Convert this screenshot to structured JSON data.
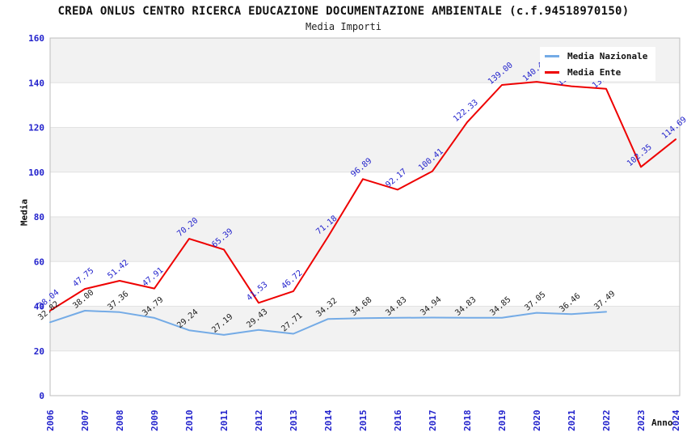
{
  "header": {
    "title": "CREDA ONLUS CENTRO RICERCA EDUCAZIONE DOCUMENTAZIONE AMBIENTALE (c.f.94518970150)",
    "subtitle": "Media Importi"
  },
  "axes": {
    "y_title": "Media",
    "x_title": "Anno",
    "y_ticks": [
      "0",
      "20",
      "40",
      "60",
      "80",
      "100",
      "120",
      "140",
      "160"
    ],
    "x_ticks": [
      "2006",
      "2007",
      "2008",
      "2009",
      "2010",
      "2011",
      "2012",
      "2013",
      "2014",
      "2015",
      "2016",
      "2017",
      "2018",
      "2019",
      "2020",
      "2021",
      "2022",
      "2023",
      "2024"
    ],
    "tick_color": "#2222cc"
  },
  "legend": {
    "items": [
      {
        "label": "Media Nazionale",
        "color": "#74abe6"
      },
      {
        "label": "Media Ente",
        "color": "#ee0000"
      }
    ]
  },
  "colors": {
    "band_gray": "#f2f2f2",
    "gridline": "#e2e2e2",
    "plot_border": "#bdbdbd",
    "national_line": "#74abe6",
    "ente_line": "#ee0000",
    "national_label": "#1a1a1a",
    "ente_label": "#2222cc"
  },
  "chart_data": {
    "type": "line",
    "title": "CREDA ONLUS CENTRO RICERCA EDUCAZIONE DOCUMENTAZIONE AMBIENTALE (c.f.94518970150)",
    "subtitle": "Media Importi",
    "xlabel": "Anno",
    "ylabel": "Media",
    "x": [
      2006,
      2007,
      2008,
      2009,
      2010,
      2011,
      2012,
      2013,
      2014,
      2015,
      2016,
      2017,
      2018,
      2019,
      2020,
      2021,
      2022,
      2023,
      2024
    ],
    "ylim": [
      0,
      160
    ],
    "ytick_step": 20,
    "grid": "alternating-horizontal-bands",
    "legend_position": "top-right",
    "series": [
      {
        "name": "Media Nazionale",
        "color": "#74abe6",
        "label_color": "#1a1a1a",
        "values": [
          32.82,
          38.0,
          37.36,
          34.79,
          29.24,
          27.19,
          29.43,
          27.71,
          34.32,
          34.68,
          34.83,
          34.94,
          34.83,
          34.85,
          37.05,
          36.46,
          37.49,
          null,
          null
        ],
        "labels": [
          "32.82",
          "38.00",
          "37.36",
          "34.79",
          "29.24",
          "27.19",
          "29.43",
          "27.71",
          "34.32",
          "34.68",
          "34.83",
          "34.94",
          "34.83",
          "34.85",
          "37.05",
          "36.46",
          "37.49",
          "",
          ""
        ]
      },
      {
        "name": "Media Ente",
        "color": "#ee0000",
        "label_color": "#2222cc",
        "values": [
          38.04,
          47.75,
          51.42,
          47.91,
          70.2,
          65.39,
          41.53,
          46.72,
          71.18,
          96.89,
          92.17,
          100.41,
          122.33,
          139.0,
          140.43,
          138.41,
          137.25,
          102.35,
          114.69
        ],
        "labels": [
          "38.04",
          "47.75",
          "51.42",
          "47.91",
          "70.20",
          "65.39",
          "41.53",
          "46.72",
          "71.18",
          "96.89",
          "92.17",
          "100.41",
          "122.33",
          "139.00",
          "140.43",
          "138.41",
          "137.25",
          "102.35",
          "114.69"
        ]
      }
    ]
  }
}
